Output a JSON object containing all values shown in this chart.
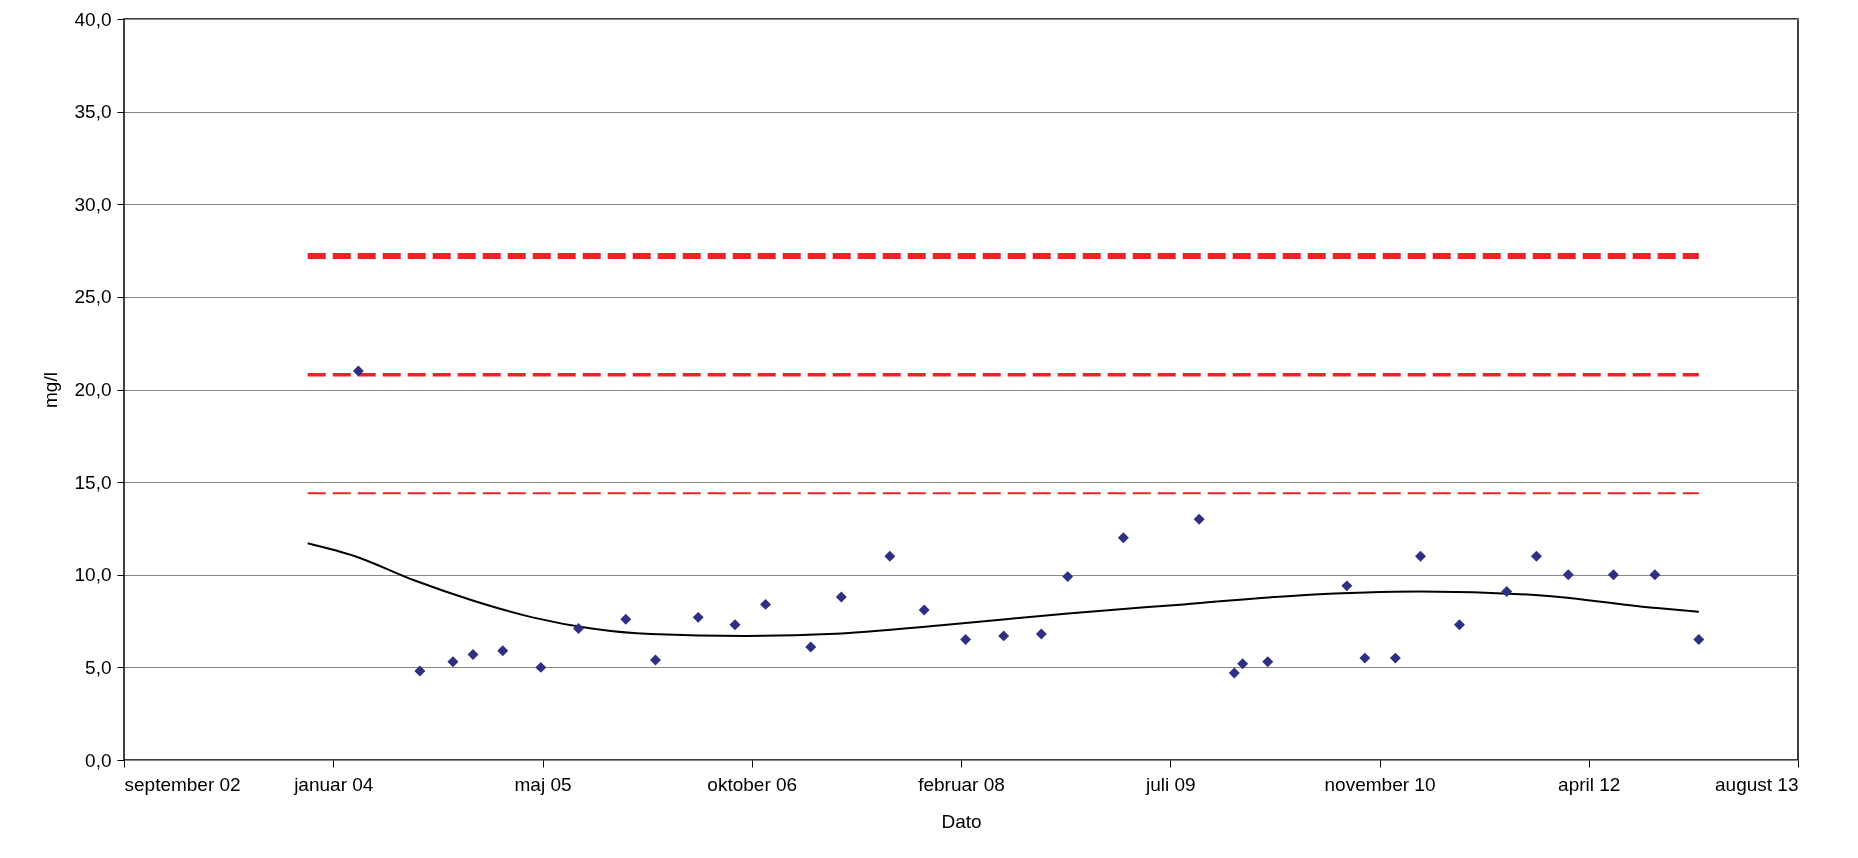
{
  "chart_data": {
    "type": "scatter",
    "xlabel": "Dato",
    "ylabel": "mg/l",
    "xlim": [
      "2002-09-01",
      "2013-08-14"
    ],
    "xticks": [
      {
        "value": "2002-09-01",
        "label": "september 02"
      },
      {
        "value": "2004-01-14",
        "label": "januar 04"
      },
      {
        "value": "2005-05-28",
        "label": "maj 05"
      },
      {
        "value": "2006-10-10",
        "label": "oktober 06"
      },
      {
        "value": "2008-02-22",
        "label": "februar 08"
      },
      {
        "value": "2009-07-06",
        "label": "juli 09"
      },
      {
        "value": "2010-11-18",
        "label": "november 10"
      },
      {
        "value": "2012-04-01",
        "label": "april 12"
      },
      {
        "value": "2013-08-14",
        "label": "august 13"
      }
    ],
    "ylim": [
      0,
      40
    ],
    "yticks": [
      {
        "value": 0,
        "label": "0,0"
      },
      {
        "value": 5,
        "label": "5,0"
      },
      {
        "value": 10,
        "label": "10,0"
      },
      {
        "value": 15,
        "label": "15,0"
      },
      {
        "value": 20,
        "label": "20,0"
      },
      {
        "value": 25,
        "label": "25,0"
      },
      {
        "value": 30,
        "label": "30,0"
      },
      {
        "value": 35,
        "label": "35,0"
      },
      {
        "value": 40,
        "label": "40,0"
      }
    ],
    "grid": "y",
    "series": [
      {
        "color": "#2e3083",
        "marker": "diamond",
        "x": [
          "2004-03-14",
          "2004-08-08",
          "2004-10-26",
          "2004-12-13",
          "2005-02-22",
          "2005-05-24",
          "2005-08-22",
          "2005-12-13",
          "2006-02-22",
          "2006-06-04",
          "2006-08-31",
          "2006-11-12",
          "2007-02-28",
          "2007-05-12",
          "2007-09-05",
          "2007-11-26",
          "2008-03-04",
          "2008-06-03",
          "2008-09-01",
          "2008-11-03",
          "2009-03-16",
          "2009-09-13",
          "2009-12-06",
          "2009-12-26",
          "2010-02-24",
          "2010-09-01",
          "2010-10-14",
          "2010-12-26",
          "2011-02-24",
          "2011-05-28",
          "2011-09-18",
          "2011-11-28",
          "2012-02-12",
          "2012-05-30",
          "2012-09-06",
          "2012-12-20"
        ],
        "values": [
          21.0,
          4.8,
          5.3,
          5.7,
          5.9,
          5.0,
          7.1,
          7.6,
          5.4,
          7.7,
          7.3,
          8.4,
          6.1,
          8.8,
          11.0,
          8.1,
          6.5,
          6.7,
          6.8,
          9.9,
          12.0,
          13.0,
          4.7,
          5.2,
          5.3,
          9.4,
          5.5,
          5.5,
          11.0,
          7.3,
          9.1,
          11.0,
          10.0,
          10.0,
          10.0,
          6.5
        ]
      },
      {
        "type": "line",
        "color": "#000000",
        "line_style": "solid",
        "x": [
          "2003-11-14",
          "2004-03-06",
          "2004-07-25",
          "2004-12-14",
          "2005-05-04",
          "2005-09-22",
          "2006-02-11",
          "2006-09-25",
          "2007-04-11",
          "2008-01-19",
          "2008-10-28",
          "2009-08-07",
          "2010-05-17",
          "2011-02-24",
          "2011-12-03",
          "2012-09-11",
          "2012-12-20"
        ],
        "values": [
          11.7,
          11.0,
          9.7,
          8.6,
          7.7,
          7.1,
          6.8,
          6.7,
          6.8,
          7.3,
          7.9,
          8.4,
          8.9,
          9.1,
          8.9,
          8.2,
          8.0
        ]
      },
      {
        "type": "line",
        "color": "#ee2222",
        "line_style": "dashed",
        "x": [
          "2003-11-14",
          "2012-12-20"
        ],
        "values": [
          27.2,
          27.2
        ]
      },
      {
        "type": "line",
        "color": "#ee2222",
        "line_style": "dashed",
        "x": [
          "2003-11-14",
          "2012-12-20"
        ],
        "values": [
          20.8,
          20.8
        ]
      },
      {
        "type": "line",
        "color": "#ee2222",
        "line_style": "dashed",
        "x": [
          "2003-11-14",
          "2012-12-20"
        ],
        "values": [
          14.4,
          14.4
        ]
      }
    ]
  }
}
